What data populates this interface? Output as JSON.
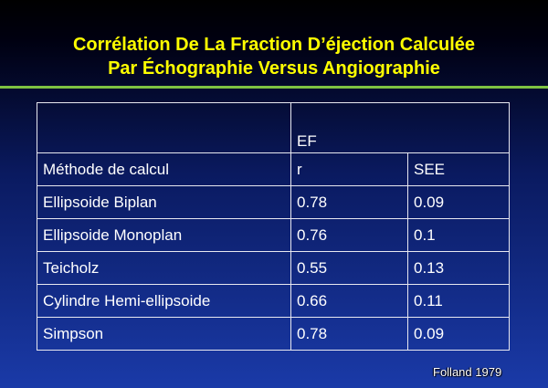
{
  "header": {
    "title_lines": [
      "Corrélation De La Fraction D’éjection Calculée",
      "Par Échographie Versus Angiographie"
    ]
  },
  "table": {
    "group_header": "EF",
    "columns": [
      "Méthode de calcul",
      "r",
      "SEE"
    ],
    "rows": [
      [
        "Ellipsoide Biplan",
        "0.78",
        "0.09"
      ],
      [
        "Ellipsoide Monoplan",
        "0.76",
        "0.1"
      ],
      [
        "Teicholz",
        "0.55",
        "0.13"
      ],
      [
        "Cylindre Hemi-ellipsoide",
        "0.66",
        "0.11"
      ],
      [
        "Simpson",
        "0.78",
        "0.09"
      ]
    ]
  },
  "footer": {
    "citation": "Folland 1979"
  }
}
